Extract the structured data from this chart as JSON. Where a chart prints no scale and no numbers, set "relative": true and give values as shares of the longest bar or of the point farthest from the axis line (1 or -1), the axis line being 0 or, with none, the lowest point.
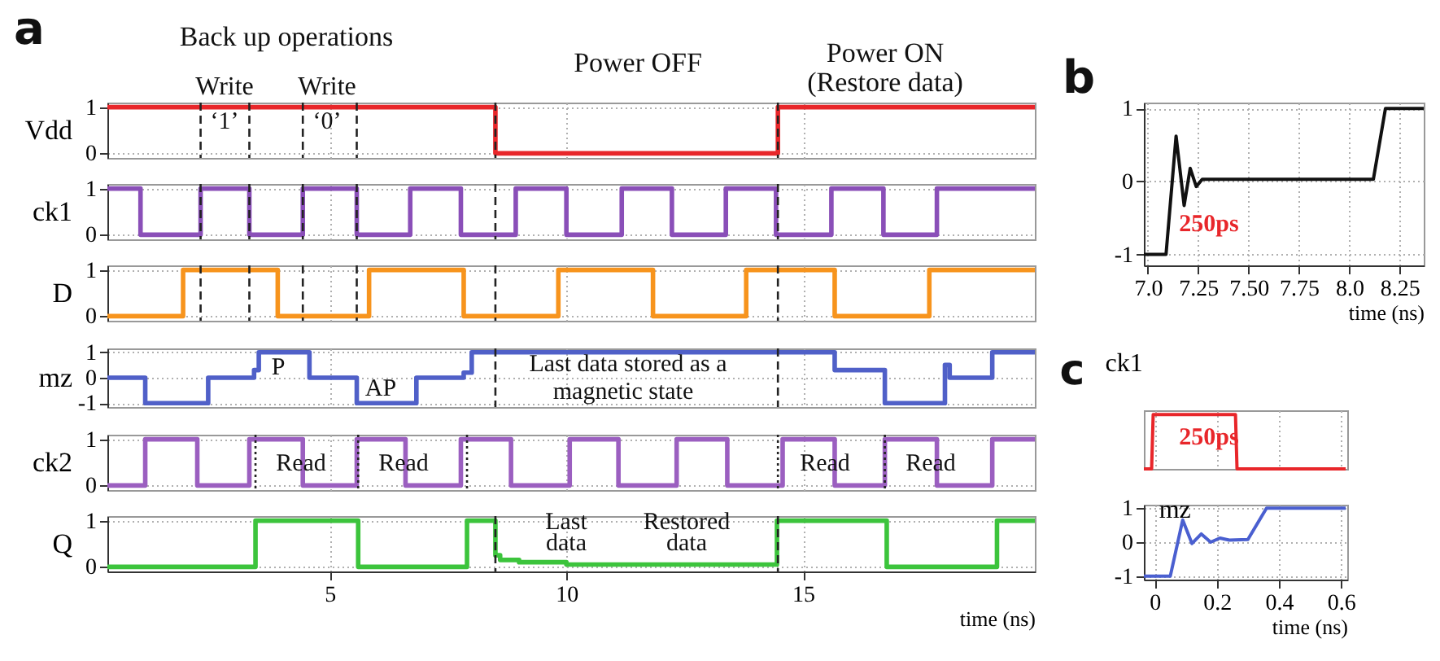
{
  "chart_data": [
    {
      "type": "step",
      "ylabel": "Vdd",
      "xlim": [
        0.3,
        19.9
      ],
      "ylim": [
        -0.1,
        1.1
      ],
      "xticks": [
        5,
        10,
        15
      ],
      "yticks": [
        0,
        1
      ],
      "grid": true,
      "tick_labels": "y",
      "x": [
        0.3,
        8.5,
        14.47,
        19.9
      ],
      "series": [
        {
          "color": "#e8262a",
          "values": [
            1,
            0,
            1,
            1
          ]
        }
      ],
      "ref_lines": [
        {
          "axis": "x",
          "value": 2.27,
          "line_style": "dashed",
          "color": "#222222"
        },
        {
          "axis": "x",
          "value": 3.3,
          "line_style": "dashed",
          "color": "#222222"
        },
        {
          "axis": "x",
          "value": 4.43,
          "line_style": "dashed",
          "color": "#222222"
        },
        {
          "axis": "x",
          "value": 5.57,
          "line_style": "dashed",
          "color": "#222222"
        },
        {
          "axis": "x",
          "value": 8.5,
          "line_style": "dashed",
          "color": "#222222"
        },
        {
          "axis": "x",
          "value": 14.47,
          "line_style": "dashed",
          "color": "#222222"
        }
      ],
      "annotations": [
        "a",
        "Back up operations",
        "Write",
        "Write",
        "‘1’",
        "‘0’",
        "Power OFF",
        "Power ON",
        "(Restore data)"
      ]
    },
    {
      "type": "step",
      "ylabel": "ck1",
      "xlim": [
        0.3,
        19.9
      ],
      "ylim": [
        -0.1,
        1.1
      ],
      "xticks": [
        5,
        10,
        15
      ],
      "yticks": [
        0,
        1
      ],
      "grid": true,
      "tick_labels": "y",
      "x": [
        0.3,
        1.0,
        2.27,
        3.3,
        4.43,
        5.57,
        6.7,
        7.77,
        8.93,
        10.0,
        11.17,
        12.23,
        13.37,
        14.43,
        15.6,
        16.7,
        17.83,
        19.9
      ],
      "series": [
        {
          "color": "#8a4fb8",
          "values": [
            1,
            0,
            1,
            0,
            1,
            0,
            1,
            0,
            1,
            0,
            1,
            0,
            1,
            0,
            1,
            0,
            1,
            1
          ]
        }
      ],
      "ref_lines": [
        {
          "axis": "x",
          "value": 2.27,
          "line_style": "dashed",
          "color": "#222222"
        },
        {
          "axis": "x",
          "value": 3.3,
          "line_style": "dashed",
          "color": "#222222"
        },
        {
          "axis": "x",
          "value": 4.43,
          "line_style": "dashed",
          "color": "#222222"
        },
        {
          "axis": "x",
          "value": 5.57,
          "line_style": "dashed",
          "color": "#222222"
        },
        {
          "axis": "x",
          "value": 8.5,
          "line_style": "dashed",
          "color": "#222222"
        },
        {
          "axis": "x",
          "value": 14.47,
          "line_style": "dashed",
          "color": "#222222"
        }
      ]
    },
    {
      "type": "step",
      "ylabel": "D",
      "xlim": [
        0.3,
        19.9
      ],
      "ylim": [
        -0.1,
        1.1
      ],
      "xticks": [
        5,
        10,
        15
      ],
      "yticks": [
        0,
        1
      ],
      "grid": true,
      "tick_labels": "y",
      "x": [
        0.3,
        1.9,
        3.9,
        5.83,
        7.83,
        9.83,
        11.83,
        13.8,
        15.67,
        17.67,
        19.9
      ],
      "series": [
        {
          "color": "#f7941d",
          "values": [
            0,
            1,
            0,
            1,
            0,
            1,
            0,
            1,
            0,
            1,
            1
          ]
        }
      ],
      "ref_lines": [
        {
          "axis": "x",
          "value": 2.27,
          "line_style": "dashed",
          "color": "#222222"
        },
        {
          "axis": "x",
          "value": 3.3,
          "line_style": "dashed",
          "color": "#222222"
        },
        {
          "axis": "x",
          "value": 4.43,
          "line_style": "dashed",
          "color": "#222222"
        },
        {
          "axis": "x",
          "value": 5.57,
          "line_style": "dashed",
          "color": "#222222"
        },
        {
          "axis": "x",
          "value": 8.5,
          "line_style": "dashed",
          "color": "#222222"
        },
        {
          "axis": "x",
          "value": 14.47,
          "line_style": "dashed",
          "color": "#222222"
        }
      ]
    },
    {
      "type": "step",
      "ylabel": "mz",
      "xlim": [
        0.3,
        19.9
      ],
      "ylim": [
        -1.15,
        1.15
      ],
      "xticks": [
        5,
        10,
        15
      ],
      "yticks": [
        -1,
        0,
        1
      ],
      "grid": true,
      "tick_labels": "y",
      "x": [
        0.3,
        1.1,
        2.43,
        3.4,
        3.5,
        4.57,
        5.57,
        6.83,
        7.83,
        8.0,
        15.67,
        16.73,
        18.0,
        18.1,
        19.0,
        19.9
      ],
      "series": [
        {
          "color": "#5060c8",
          "values": [
            0,
            -1,
            0,
            0.3,
            1,
            0,
            -1,
            0,
            0.2,
            1,
            0.3,
            -1,
            0.5,
            0,
            1,
            1
          ]
        }
      ],
      "ref_lines": [
        {
          "axis": "x",
          "value": 8.5,
          "line_style": "dashed",
          "color": "#222222"
        },
        {
          "axis": "x",
          "value": 14.47,
          "line_style": "dashed",
          "color": "#222222"
        }
      ],
      "annotations": [
        "P",
        "AP",
        "Last data stored as a",
        "magnetic state"
      ]
    },
    {
      "type": "step",
      "ylabel": "ck2",
      "xlim": [
        0.3,
        19.9
      ],
      "ylim": [
        -0.1,
        1.1
      ],
      "xticks": [
        5,
        10,
        15
      ],
      "yticks": [
        0,
        1
      ],
      "grid": true,
      "tick_labels": "y",
      "x": [
        0.3,
        1.1,
        2.2,
        3.3,
        4.43,
        5.57,
        6.6,
        7.77,
        8.83,
        10.07,
        11.1,
        12.33,
        13.4,
        14.57,
        15.67,
        16.73,
        17.83,
        19.0,
        19.9
      ],
      "series": [
        {
          "color": "#9b5fc0",
          "values": [
            0,
            1,
            0,
            1,
            0,
            1,
            0,
            1,
            0,
            1,
            0,
            1,
            0,
            1,
            0,
            1,
            0,
            1,
            1
          ]
        }
      ],
      "ref_lines": [
        {
          "axis": "x",
          "value": 3.43,
          "line_style": "dotted",
          "color": "#222222"
        },
        {
          "axis": "x",
          "value": 5.6,
          "line_style": "dotted",
          "color": "#222222"
        },
        {
          "axis": "x",
          "value": 7.9,
          "line_style": "dotted",
          "color": "#222222"
        },
        {
          "axis": "x",
          "value": 14.47,
          "line_style": "dotted",
          "color": "#222222"
        },
        {
          "axis": "x",
          "value": 16.73,
          "line_style": "dotted",
          "color": "#222222"
        }
      ],
      "annotations": [
        "Read",
        "Read",
        "Read",
        "Read"
      ]
    },
    {
      "type": "step",
      "ylabel": "Q",
      "xlabel": "time (ns)",
      "xlim": [
        0.3,
        19.9
      ],
      "ylim": [
        -0.1,
        1.1
      ],
      "xticks": [
        5,
        10,
        15
      ],
      "yticks": [
        0,
        1
      ],
      "grid": true,
      "x": [
        0.3,
        3.43,
        5.6,
        7.9,
        8.5,
        8.6,
        9.0,
        10.0,
        14.45,
        16.77,
        19.1,
        19.9
      ],
      "series": [
        {
          "color": "#3cc43c",
          "values": [
            0,
            1,
            0,
            1,
            0.25,
            0.15,
            0.1,
            0.05,
            1,
            0,
            1,
            1
          ]
        }
      ],
      "ref_lines": [
        {
          "axis": "x",
          "value": 8.5,
          "line_style": "dashed",
          "color": "#222222"
        },
        {
          "axis": "x",
          "value": 14.47,
          "line_style": "dashed",
          "color": "#222222"
        }
      ],
      "annotations": [
        "Last",
        "data",
        "Restored",
        "data"
      ]
    },
    {
      "type": "line",
      "xlabel": "time (ns)",
      "xlim": [
        6.98,
        8.37
      ],
      "ylim": [
        -1.15,
        1.08
      ],
      "grid": true,
      "xticks": [
        {
          "value": 7,
          "label": "7.0"
        },
        7.25,
        {
          "value": 7.5,
          "label": "7.50"
        },
        7.75,
        {
          "value": 8,
          "label": "8.0"
        },
        8.25
      ],
      "yticks": [
        -1,
        0,
        1
      ],
      "x": [
        6.98,
        7.09,
        7.14,
        7.18,
        7.21,
        7.24,
        7.27,
        7.31,
        8.12,
        8.18,
        8.37
      ],
      "series": [
        {
          "color": "#111111",
          "values": [
            -1,
            -1,
            0.62,
            -0.33,
            0.18,
            -0.07,
            0.03,
            0.03,
            0.03,
            1,
            1
          ]
        }
      ],
      "annotations": [
        "b",
        "250ps"
      ]
    },
    {
      "type": "line",
      "title": "ck1",
      "relative": true,
      "xlim": [
        -0.035,
        0.62
      ],
      "grid": "x",
      "tick_labels": false,
      "xticks": [
        0,
        0.2,
        0.4,
        0.6
      ],
      "x": [
        -0.035,
        -0.01,
        -0.005,
        0.26,
        0.265,
        0.615
      ],
      "series": [
        {
          "color": "#e8262a",
          "values": [
            0,
            0,
            1,
            1,
            0,
            0
          ]
        }
      ],
      "annotations": [
        "c",
        "250ps"
      ]
    },
    {
      "type": "line",
      "title": "mz",
      "xlabel": "time (ns)",
      "xlim": [
        -0.035,
        0.62
      ],
      "ylim": [
        -1.1,
        1.1
      ],
      "xticks": [
        0,
        0.2,
        0.4,
        0.6
      ],
      "yticks": [
        -1,
        0,
        1
      ],
      "grid": true,
      "x": [
        -0.035,
        0.05,
        0.09,
        0.12,
        0.15,
        0.18,
        0.21,
        0.24,
        0.3,
        0.36,
        0.615
      ],
      "series": [
        {
          "color": "#4a5fd0",
          "values": [
            -1,
            -1,
            0.65,
            -0.04,
            0.24,
            0.0,
            0.12,
            0.06,
            0.08,
            1,
            1
          ]
        }
      ]
    }
  ]
}
